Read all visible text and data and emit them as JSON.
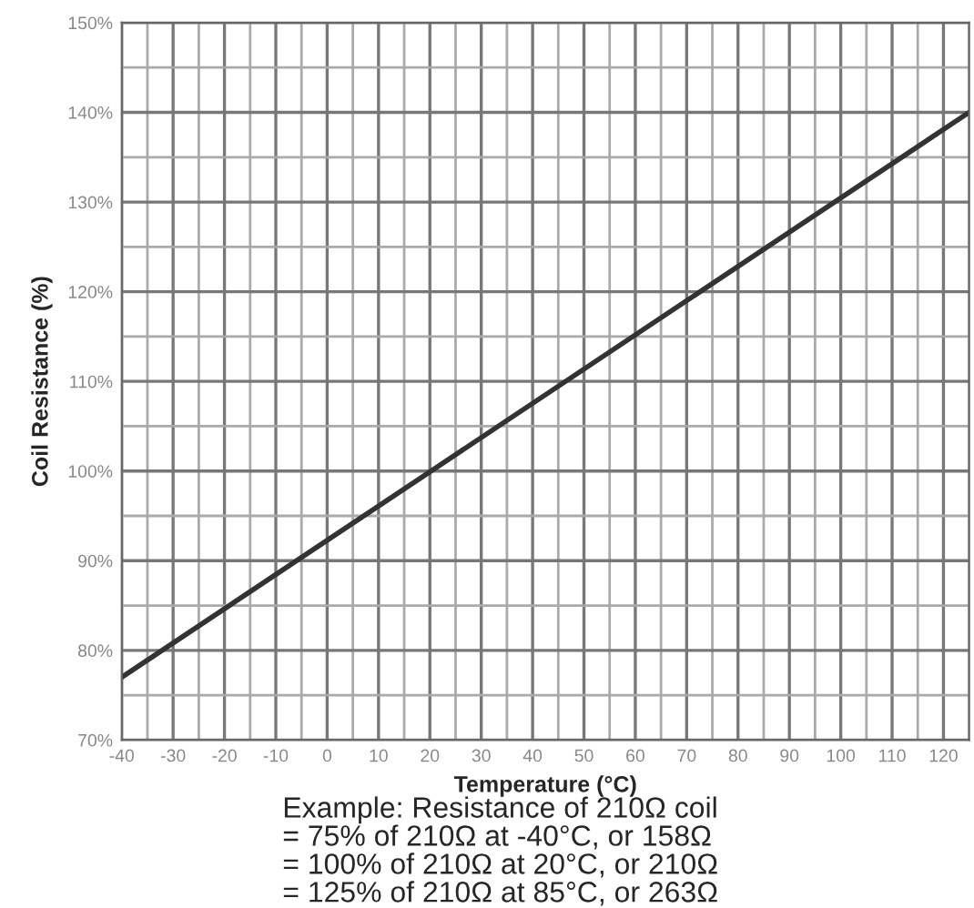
{
  "chart_data": {
    "type": "line",
    "xlabel": "Temperature (°C)",
    "ylabel": "Coil Resistance (%)",
    "x": [
      -40,
      125
    ],
    "series": [
      {
        "color": "#333333",
        "values": [
          77,
          140
        ]
      }
    ],
    "xlim": [
      -40,
      125
    ],
    "ylim": [
      70,
      150
    ],
    "xticks": [
      -40,
      -30,
      -20,
      -10,
      0,
      10,
      20,
      30,
      40,
      50,
      60,
      70,
      80,
      90,
      100,
      110,
      120
    ],
    "yticks": [
      {
        "value": 70,
        "label": "70%"
      },
      {
        "value": 80,
        "label": "80%"
      },
      {
        "value": 90,
        "label": "90%"
      },
      {
        "value": 100,
        "label": "100%"
      },
      {
        "value": 110,
        "label": "110%"
      },
      {
        "value": 120,
        "label": "120%"
      },
      {
        "value": 130,
        "label": "130%"
      },
      {
        "value": 140,
        "label": "140%"
      },
      {
        "value": 150,
        "label": "150%"
      }
    ],
    "grid": true,
    "marker": "none",
    "line_style": "solid",
    "annotations": [
      "Example: Resistance of 210Ω coil\n= 75% of 210Ω at -40°C, or 158Ω\n= 100% of 210Ω at 20°C, or 210Ω\n= 125% of 210Ω at 85°C, or 263Ω"
    ]
  }
}
